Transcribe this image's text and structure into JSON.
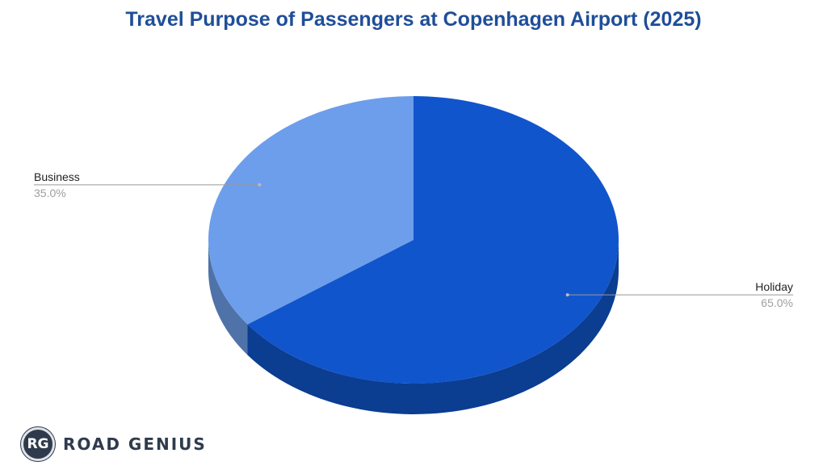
{
  "chart_data": {
    "type": "pie",
    "title": "Travel Purpose of Passengers at Copenhagen Airport (2025)",
    "categories": [
      "Holiday",
      "Business"
    ],
    "values": [
      65.0,
      35.0
    ],
    "value_labels": [
      "65.0%",
      "35.0%"
    ],
    "colors": {
      "top": [
        "#1155cc",
        "#6d9eeb"
      ],
      "side": [
        "#0b3d91",
        "#4f72a8"
      ]
    },
    "style": "3d",
    "legend": "none"
  },
  "branding": {
    "badge": "RG",
    "name": "ROAD GENIUS"
  }
}
